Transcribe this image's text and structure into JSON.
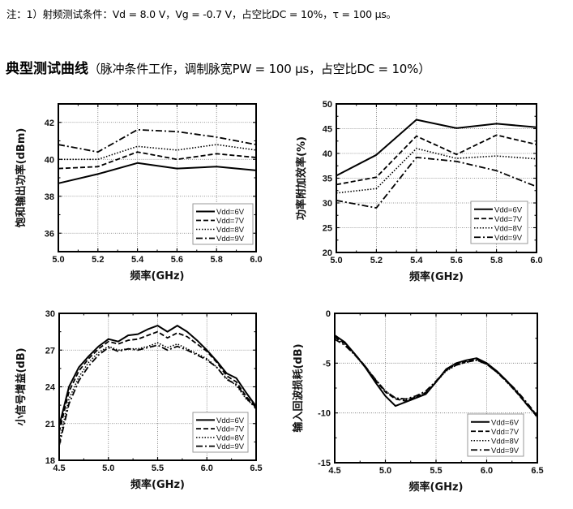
{
  "note": "注：1）射频测试条件：Vd = 8.0 V，Vg = -0.7 V，占空比DC = 10%，τ = 100 μs。",
  "heading": {
    "title": "典型测试曲线",
    "subtitle": "（脉冲条件工作，调制脉宽PW = 100 μs，占空比DC = 10%）"
  },
  "chart_data": [
    {
      "type": "line",
      "title": "",
      "xlabel": "频率(GHz)",
      "ylabel": "饱和输出功率(dBm)",
      "xlim": [
        5.0,
        6.0
      ],
      "ylim": [
        35,
        43
      ],
      "xticks": [
        "5.0",
        "5.2",
        "5.4",
        "5.6",
        "5.8",
        "6.0"
      ],
      "yticks": [
        "36",
        "38",
        "40",
        "42"
      ],
      "grid": true,
      "legend": "bottom-right",
      "x": [
        5.0,
        5.2,
        5.4,
        5.6,
        5.8,
        6.0
      ],
      "series": [
        {
          "name": "Vdd=6V",
          "style": "solid",
          "values": [
            38.7,
            39.2,
            39.8,
            39.5,
            39.6,
            39.4
          ]
        },
        {
          "name": "Vdd=7V",
          "style": "dash",
          "values": [
            39.5,
            39.6,
            40.4,
            40.0,
            40.3,
            40.1
          ]
        },
        {
          "name": "Vdd=8V",
          "style": "dot",
          "values": [
            40.0,
            40.0,
            40.7,
            40.5,
            40.8,
            40.5
          ]
        },
        {
          "name": "Vdd=9V",
          "style": "dashdot",
          "values": [
            40.8,
            40.4,
            41.6,
            41.5,
            41.2,
            40.8
          ]
        }
      ]
    },
    {
      "type": "line",
      "title": "",
      "xlabel": "频率(GHz)",
      "ylabel": "功率附加效率(%)",
      "xlim": [
        5.0,
        6.0
      ],
      "ylim": [
        20,
        50
      ],
      "xticks": [
        "5.0",
        "5.2",
        "5.4",
        "5.6",
        "5.8",
        "6.0"
      ],
      "yticks": [
        "20",
        "25",
        "30",
        "35",
        "40",
        "45",
        "50"
      ],
      "grid": true,
      "legend": "bottom-right",
      "x": [
        5.0,
        5.2,
        5.4,
        5.6,
        5.8,
        6.0
      ],
      "series": [
        {
          "name": "Vdd=6V",
          "style": "solid",
          "values": [
            35.5,
            39.7,
            46.8,
            45.1,
            46.0,
            45.3
          ]
        },
        {
          "name": "Vdd=7V",
          "style": "dash",
          "values": [
            33.7,
            35.2,
            43.5,
            39.8,
            43.7,
            41.8
          ]
        },
        {
          "name": "Vdd=8V",
          "style": "dot",
          "values": [
            32.0,
            32.9,
            41.0,
            39.0,
            39.5,
            38.9
          ]
        },
        {
          "name": "Vdd=9V",
          "style": "dashdot",
          "values": [
            30.5,
            29.0,
            39.2,
            38.4,
            36.5,
            33.3
          ]
        }
      ]
    },
    {
      "type": "line",
      "title": "",
      "xlabel": "频率(GHz)",
      "ylabel": "小信号增益(dB)",
      "xlim": [
        4.5,
        6.5
      ],
      "ylim": [
        18,
        30
      ],
      "xticks": [
        "4.5",
        "5.0",
        "5.5",
        "6.0",
        "6.5"
      ],
      "yticks": [
        "18",
        "21",
        "24",
        "27",
        "30"
      ],
      "grid": true,
      "legend": "bottom-right",
      "x": [
        4.5,
        4.6,
        4.7,
        4.8,
        4.9,
        5.0,
        5.1,
        5.2,
        5.3,
        5.4,
        5.5,
        5.6,
        5.7,
        5.8,
        5.9,
        6.0,
        6.1,
        6.2,
        6.3,
        6.4,
        6.5
      ],
      "series": [
        {
          "name": "Vdd=6V",
          "style": "solid",
          "values": [
            20.8,
            24.0,
            25.6,
            26.5,
            27.3,
            27.9,
            27.7,
            28.2,
            28.3,
            28.7,
            29.0,
            28.5,
            29.0,
            28.5,
            27.8,
            27.0,
            26.1,
            25.1,
            24.7,
            23.5,
            22.4
          ]
        },
        {
          "name": "Vdd=7V",
          "style": "dash",
          "values": [
            20.3,
            23.6,
            25.3,
            26.3,
            27.1,
            27.7,
            27.5,
            27.8,
            27.9,
            28.2,
            28.5,
            28.0,
            28.4,
            28.1,
            27.5,
            26.9,
            26.0,
            24.9,
            24.4,
            23.2,
            22.3
          ]
        },
        {
          "name": "Vdd=8V",
          "style": "dot",
          "values": [
            19.5,
            23.0,
            24.8,
            26.0,
            26.8,
            27.3,
            27.0,
            27.1,
            27.1,
            27.3,
            27.6,
            27.2,
            27.5,
            27.1,
            26.7,
            26.3,
            25.6,
            24.7,
            24.1,
            23.0,
            22.3
          ]
        },
        {
          "name": "Vdd=9V",
          "style": "dashdot",
          "values": [
            19.2,
            22.6,
            24.5,
            25.7,
            26.6,
            27.2,
            26.9,
            27.1,
            27.0,
            27.2,
            27.4,
            27.0,
            27.3,
            27.0,
            26.6,
            26.2,
            25.6,
            24.6,
            24.2,
            23.1,
            22.2
          ]
        }
      ]
    },
    {
      "type": "line",
      "title": "",
      "xlabel": "频率(GHz)",
      "ylabel": "输入回波损耗(dB)",
      "xlim": [
        4.5,
        6.5
      ],
      "ylim": [
        -15,
        0
      ],
      "xticks": [
        "4.5",
        "5.0",
        "5.5",
        "6.0",
        "6.5"
      ],
      "yticks": [
        "-15",
        "-10",
        "-5",
        "0"
      ],
      "grid": true,
      "legend": "bottom-right",
      "x": [
        4.5,
        4.6,
        4.7,
        4.8,
        4.9,
        5.0,
        5.1,
        5.2,
        5.3,
        5.4,
        5.5,
        5.6,
        5.7,
        5.8,
        5.9,
        6.0,
        6.1,
        6.2,
        6.3,
        6.4,
        6.5
      ],
      "series": [
        {
          "name": "Vdd=6V",
          "style": "solid",
          "values": [
            -2.2,
            -2.9,
            -4.1,
            -5.4,
            -6.9,
            -8.3,
            -9.3,
            -8.9,
            -8.5,
            -8.1,
            -6.9,
            -5.6,
            -5.0,
            -4.7,
            -4.5,
            -5.0,
            -5.8,
            -6.8,
            -7.9,
            -9.2,
            -10.3
          ]
        },
        {
          "name": "Vdd=7V",
          "style": "dash",
          "values": [
            -2.4,
            -3.0,
            -4.1,
            -5.3,
            -6.7,
            -7.9,
            -8.6,
            -8.8,
            -8.4,
            -8.0,
            -6.9,
            -5.7,
            -5.1,
            -4.8,
            -4.6,
            -5.1,
            -5.9,
            -6.9,
            -8.0,
            -9.2,
            -10.4
          ]
        },
        {
          "name": "Vdd=8V",
          "style": "dot",
          "values": [
            -2.5,
            -3.1,
            -4.2,
            -5.4,
            -6.6,
            -7.8,
            -8.5,
            -8.7,
            -8.4,
            -7.9,
            -6.9,
            -5.8,
            -5.2,
            -4.9,
            -4.7,
            -5.1,
            -5.9,
            -6.9,
            -8.0,
            -9.1,
            -10.5
          ]
        },
        {
          "name": "Vdd=9V",
          "style": "dashdot",
          "values": [
            -2.6,
            -3.2,
            -4.2,
            -5.3,
            -6.6,
            -7.8,
            -8.5,
            -8.6,
            -8.3,
            -7.8,
            -6.8,
            -5.7,
            -5.2,
            -4.9,
            -4.7,
            -5.1,
            -5.9,
            -6.8,
            -7.8,
            -9.0,
            -10.3
          ]
        }
      ]
    }
  ]
}
